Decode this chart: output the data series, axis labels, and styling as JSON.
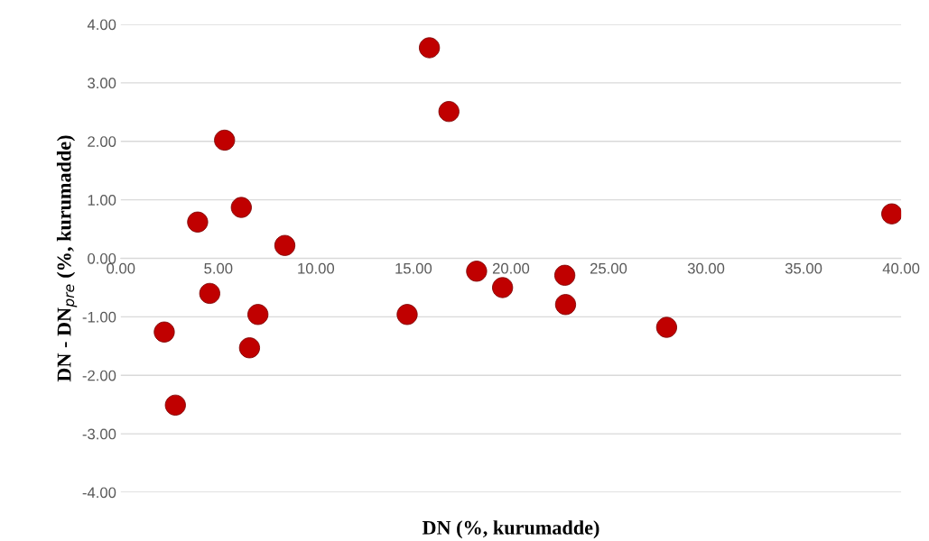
{
  "chart_data": {
    "type": "scatter",
    "xlabel": "DN (%, kurumadde)",
    "ylabel": "DN - DN$_{pre}$ (%, kurumadde)",
    "xlim": [
      0,
      40
    ],
    "ylim": [
      -4,
      4
    ],
    "xticks": [
      {
        "value": 0,
        "label": "0.00"
      },
      {
        "value": 5,
        "label": "5.00"
      },
      {
        "value": 10,
        "label": "10.00"
      },
      {
        "value": 15,
        "label": "15.00"
      },
      {
        "value": 20,
        "label": "20.00"
      },
      {
        "value": 25,
        "label": "25.00"
      },
      {
        "value": 30,
        "label": "30.00"
      },
      {
        "value": 35,
        "label": "35.00"
      },
      {
        "value": 40,
        "label": "40.00"
      }
    ],
    "yticks": [
      {
        "value": -4,
        "label": "-4.00"
      },
      {
        "value": -3,
        "label": "-3.00"
      },
      {
        "value": -2,
        "label": "-2.00"
      },
      {
        "value": -1,
        "label": "-1.00"
      },
      {
        "value": 0,
        "label": "0.00"
      },
      {
        "value": 1,
        "label": "1.00"
      },
      {
        "value": 2,
        "label": "2.00"
      },
      {
        "value": 3,
        "label": "3.00"
      },
      {
        "value": 4,
        "label": "4.00"
      }
    ],
    "grid": "y",
    "marker": "circle",
    "legend": false,
    "series": [
      {
        "color": "#c00000",
        "x": [
          15.82,
          16.82,
          5.32,
          6.18,
          3.94,
          8.41,
          39.52,
          18.24,
          19.57,
          22.76,
          22.8,
          4.56,
          7.03,
          14.68,
          2.23,
          6.6,
          27.98,
          2.8
        ],
        "values": [
          3.6,
          2.51,
          2.02,
          0.87,
          0.62,
          0.22,
          0.76,
          -0.22,
          -0.5,
          -0.29,
          -0.79,
          -0.6,
          -0.96,
          -0.96,
          -1.26,
          -1.53,
          -1.18,
          -2.51
        ]
      }
    ]
  }
}
